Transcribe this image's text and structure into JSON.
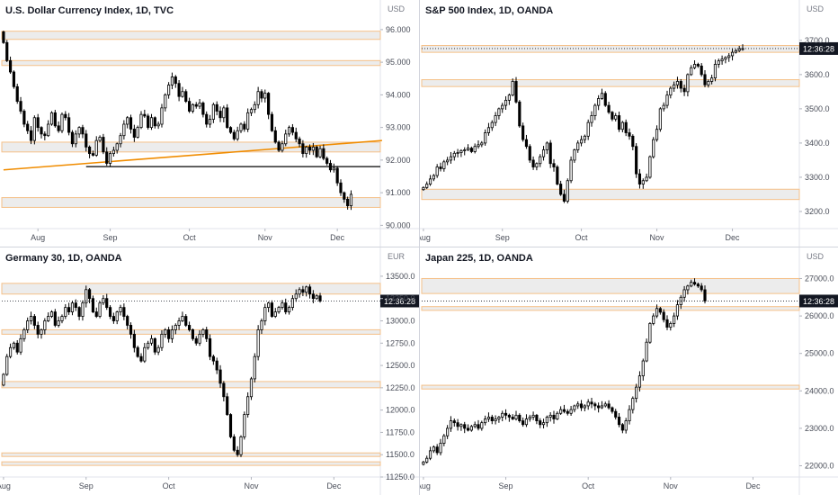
{
  "chart_data": [
    {
      "type": "candlestick",
      "title": "U.S. Dollar Currency Index, 1D, TVC",
      "currency": "USD",
      "ylim": [
        89.9,
        96.3
      ],
      "y_ticks": [
        "96.000",
        "95.000",
        "94.000",
        "93.000",
        "92.000",
        "91.000",
        "90.000"
      ],
      "y_tick_values": [
        96,
        95,
        94,
        93,
        92,
        91,
        90
      ],
      "x_ticks": [
        "Aug",
        "Sep",
        "Oct",
        "Nov",
        "Dec"
      ],
      "x_tick_index": [
        10,
        31,
        54,
        76,
        97
      ],
      "total_bars": 110,
      "colors": {
        "up": "#ffffff",
        "down": "#000000",
        "wick": "#000000",
        "zone_fill": "#ececec",
        "zone_stroke": "#f5c088",
        "trendline": "#f08c00"
      },
      "closes": [
        95.6,
        95.05,
        94.7,
        94.25,
        93.8,
        93.5,
        93.1,
        92.9,
        92.6,
        93.3,
        93.0,
        92.8,
        92.75,
        93.1,
        93.45,
        93.05,
        92.9,
        93.4,
        93.3,
        92.85,
        92.5,
        92.8,
        93.0,
        92.8,
        92.4,
        92.2,
        92.15,
        92.6,
        92.7,
        92.25,
        91.9,
        92.2,
        92.3,
        92.5,
        92.75,
        93.1,
        93.3,
        92.95,
        92.7,
        93.0,
        93.4,
        93.35,
        93.0,
        93.3,
        93.05,
        93.1,
        93.6,
        94.0,
        94.3,
        94.55,
        94.35,
        93.95,
        94.1,
        93.8,
        93.5,
        93.7,
        93.65,
        93.75,
        93.4,
        93.1,
        93.25,
        93.7,
        93.5,
        93.3,
        93.6,
        93.0,
        92.85,
        92.65,
        92.9,
        93.1,
        92.95,
        93.45,
        93.55,
        93.7,
        94.1,
        93.9,
        94.05,
        93.4,
        92.9,
        92.55,
        92.3,
        92.5,
        92.8,
        93.0,
        92.85,
        92.65,
        92.5,
        92.2,
        92.4,
        92.3,
        92.4,
        92.1,
        92.35,
        92.05,
        91.9,
        91.7,
        91.75,
        91.3,
        91.0,
        90.8,
        90.6,
        90.95
      ],
      "swing_lines": [
        {
          "from": 24,
          "to": 110,
          "y": 91.8,
          "color": "#000000"
        }
      ],
      "trendline": {
        "from": [
          0,
          91.7
        ],
        "to": [
          110,
          92.6
        ]
      },
      "zones": [
        [
          95.7,
          95.95
        ],
        [
          94.9,
          95.05
        ],
        [
          92.25,
          92.55
        ],
        [
          90.55,
          90.85
        ]
      ]
    },
    {
      "type": "candlestick",
      "title": "S&P 500 Index, 1D, OANDA",
      "currency": "USD",
      "ylim": [
        3150,
        3760
      ],
      "y_ticks": [
        "3700.0",
        "3600.0",
        "3500.0",
        "3400.0",
        "3300.0",
        "3200.0"
      ],
      "y_tick_values": [
        3700,
        3600,
        3500,
        3400,
        3300,
        3200
      ],
      "x_ticks": [
        "Aug",
        "Sep",
        "Oct",
        "Nov",
        "Dec"
      ],
      "x_tick_index": [
        0,
        23,
        46,
        68,
        90
      ],
      "total_bars": 110,
      "last_price": 3676.0,
      "time_label": "12:36:28",
      "colors": {
        "up": "#ffffff",
        "down": "#000000",
        "wick": "#000000",
        "zone_fill": "#ececec",
        "zone_stroke": "#f5c088"
      },
      "closes": [
        3270,
        3280,
        3295,
        3305,
        3330,
        3325,
        3345,
        3350,
        3360,
        3370,
        3372,
        3378,
        3380,
        3385,
        3375,
        3390,
        3395,
        3400,
        3430,
        3445,
        3460,
        3480,
        3500,
        3510,
        3525,
        3540,
        3580,
        3520,
        3450,
        3410,
        3390,
        3350,
        3330,
        3340,
        3360,
        3380,
        3400,
        3340,
        3330,
        3280,
        3250,
        3230,
        3290,
        3350,
        3380,
        3400,
        3410,
        3420,
        3460,
        3480,
        3510,
        3530,
        3545,
        3510,
        3490,
        3470,
        3480,
        3440,
        3460,
        3430,
        3420,
        3390,
        3310,
        3280,
        3290,
        3300,
        3360,
        3410,
        3440,
        3500,
        3510,
        3540,
        3560,
        3570,
        3580,
        3560,
        3550,
        3600,
        3620,
        3630,
        3625,
        3600,
        3570,
        3580,
        3590,
        3630,
        3640,
        3645,
        3650,
        3655,
        3665,
        3670,
        3675,
        3676
      ],
      "zones": [
        [
          3665,
          3685
        ],
        [
          3565,
          3585
        ],
        [
          3235,
          3265
        ]
      ]
    },
    {
      "type": "candlestick",
      "title": "Germany 30, 1D, OANDA",
      "currency": "EUR",
      "ylim": [
        11250,
        13600
      ],
      "y_ticks": [
        "13500.0",
        "13250.0",
        "13000.0",
        "12750.0",
        "12500.0",
        "12250.0",
        "12000.0",
        "11750.0",
        "11500.0",
        "11250.0"
      ],
      "y_tick_values": [
        13500,
        13250,
        13000,
        12750,
        12500,
        12250,
        12000,
        11750,
        11500,
        11250
      ],
      "x_ticks": [
        "Aug",
        "Sep",
        "Oct",
        "Nov",
        "Dec"
      ],
      "x_tick_index": [
        0,
        24,
        48,
        72,
        96
      ],
      "total_bars": 110,
      "last_price": 13222.0,
      "time_label": "12:36:28",
      "colors": {
        "up": "#ffffff",
        "down": "#000000",
        "wick": "#000000",
        "zone_fill": "#ececec",
        "zone_stroke": "#f5c088"
      },
      "closes": [
        12400,
        12600,
        12700,
        12750,
        12650,
        12800,
        12900,
        13000,
        13050,
        12950,
        12850,
        12900,
        13000,
        13050,
        13100,
        12950,
        13000,
        13050,
        13150,
        13100,
        13200,
        13150,
        13050,
        13200,
        13350,
        13250,
        13100,
        13050,
        13200,
        13250,
        13150,
        13050,
        13000,
        13100,
        13150,
        13050,
        12950,
        12850,
        12700,
        12600,
        12550,
        12700,
        12750,
        12800,
        12650,
        12700,
        12850,
        12900,
        12800,
        12900,
        12950,
        13000,
        13050,
        12950,
        12900,
        12800,
        12750,
        12850,
        12900,
        12800,
        12600,
        12550,
        12450,
        12300,
        12150,
        11950,
        11700,
        11550,
        11500,
        11700,
        11950,
        12150,
        12350,
        12600,
        12900,
        13000,
        13150,
        13200,
        13050,
        13100,
        13150,
        13200,
        13100,
        13150,
        13250,
        13300,
        13350,
        13320,
        13380,
        13300,
        13250,
        13280,
        13222
      ],
      "zones": [
        [
          13300,
          13420
        ],
        [
          12850,
          12900
        ],
        [
          12250,
          12320
        ],
        [
          11480,
          11520
        ],
        [
          11380,
          11420
        ]
      ]
    },
    {
      "type": "candlestick",
      "title": "Japan 225, 1D, OANDA",
      "currency": "USD",
      "ylim": [
        21700,
        27300
      ],
      "y_ticks": [
        "27000.0",
        "26000.0",
        "25000.0",
        "24000.0",
        "23000.0",
        "22000.0"
      ],
      "y_tick_values": [
        27000,
        26000,
        25000,
        24000,
        23000,
        22000
      ],
      "x_ticks": [
        "Aug",
        "Sep",
        "Oct",
        "Nov",
        "Dec"
      ],
      "x_tick_index": [
        0,
        24,
        48,
        72,
        96
      ],
      "total_bars": 110,
      "last_price": 26400.0,
      "time_label": "12:36:28",
      "colors": {
        "up": "#ffffff",
        "down": "#000000",
        "wick": "#000000",
        "zone_fill": "#ececec",
        "zone_stroke": "#f5c088"
      },
      "closes": [
        22100,
        22200,
        22400,
        22500,
        22350,
        22600,
        22800,
        23000,
        23200,
        23150,
        23050,
        23100,
        23000,
        22950,
        23050,
        23100,
        23000,
        23150,
        23250,
        23300,
        23200,
        23250,
        23300,
        23400,
        23350,
        23300,
        23250,
        23350,
        23200,
        23100,
        23250,
        23300,
        23350,
        23200,
        23100,
        23150,
        23300,
        23350,
        23250,
        23400,
        23500,
        23450,
        23400,
        23500,
        23600,
        23650,
        23550,
        23600,
        23700,
        23650,
        23600,
        23550,
        23600,
        23650,
        23550,
        23450,
        23300,
        23100,
        22950,
        23200,
        23500,
        23800,
        24100,
        24400,
        24800,
        25300,
        25800,
        26000,
        26200,
        26100,
        25900,
        25700,
        25800,
        26000,
        26300,
        26500,
        26700,
        26800,
        26900,
        26850,
        26800,
        26700,
        26400
      ],
      "zones": [
        [
          26600,
          27000
        ],
        [
          26150,
          26250
        ],
        [
          24050,
          24150
        ]
      ]
    }
  ]
}
